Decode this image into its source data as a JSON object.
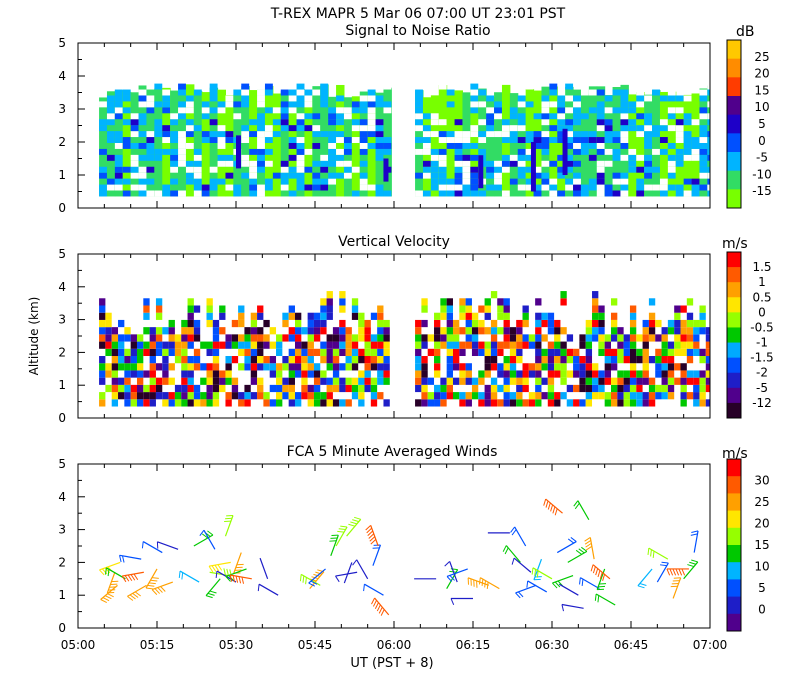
{
  "header": {
    "title": "T-REX   MAPR   5 Mar 06   07:00 UT   23:01   PST"
  },
  "chart_data": [
    {
      "type": "heatmap",
      "title": "Signal to Noise Ratio",
      "xlabel": "",
      "ylabel": "",
      "x_range_minutes_from_0500": [
        0,
        120
      ],
      "ylim": [
        0,
        5
      ],
      "y_ticks": [
        "0",
        "1",
        "2",
        "3",
        "4",
        "5"
      ],
      "data_gap_minutes": [
        59,
        64
      ],
      "colorbar": {
        "unit": "dB",
        "labels": [
          "25",
          "20",
          "15",
          "10",
          "5",
          "0",
          "-5",
          "-10",
          "-15"
        ],
        "colors": [
          "#ffc800",
          "#ff8c00",
          "#ff3c00",
          "#50008c",
          "#1e00c8",
          "#0050ff",
          "#00b4ff",
          "#32dc64",
          "#78ff00"
        ]
      }
    },
    {
      "type": "heatmap",
      "title": "Vertical Velocity",
      "xlabel": "",
      "ylabel": "Altitude (km)",
      "x_range_minutes_from_0500": [
        0,
        120
      ],
      "ylim": [
        0,
        5
      ],
      "y_ticks": [
        "0",
        "1",
        "2",
        "3",
        "4",
        "5"
      ],
      "data_gap_minutes": [
        59,
        64
      ],
      "colorbar": {
        "unit": "m/s",
        "labels": [
          "1.5",
          "1",
          "0.5",
          "0",
          "-0.5",
          "-1",
          "-1.5",
          "-2",
          "-5",
          "-12"
        ],
        "colors": [
          "#ff0000",
          "#ff5a00",
          "#ffa000",
          "#ffe600",
          "#96ff00",
          "#00c800",
          "#00aaff",
          "#0050ff",
          "#1e1ec8",
          "#50008c",
          "#280028"
        ]
      }
    },
    {
      "type": "scatter",
      "title": "FCA 5 Minute Averaged Winds",
      "xlabel": "UT  (PST + 8)",
      "ylabel": "",
      "x_range_minutes_from_0500": [
        0,
        120
      ],
      "ylim": [
        0,
        5
      ],
      "y_ticks": [
        "0",
        "1",
        "2",
        "3",
        "4",
        "5"
      ],
      "x_ticks": [
        "05:00",
        "05:15",
        "05:30",
        "05:45",
        "06:00",
        "06:15",
        "06:30",
        "06:45",
        "07:00"
      ],
      "colorbar": {
        "unit": "m/s",
        "labels": [
          "30",
          "25",
          "20",
          "15",
          "10",
          "5",
          "0"
        ],
        "colors": [
          "#ff0000",
          "#ff5a00",
          "#ffa000",
          "#ffe600",
          "#96ff00",
          "#00c800",
          "#00b4ff",
          "#0050ff",
          "#1e1ec8",
          "#50008c"
        ]
      },
      "barbs": [
        {
          "t": 7,
          "alt": 1.7,
          "dir": 200,
          "spd": 24
        },
        {
          "t": 7.5,
          "alt": 1.3,
          "dir": 230,
          "spd": 22
        },
        {
          "t": 8,
          "alt": 2.0,
          "dir": 250,
          "spd": 20
        },
        {
          "t": 9,
          "alt": 1.5,
          "dir": 300,
          "spd": 12
        },
        {
          "t": 12,
          "alt": 2.1,
          "dir": 280,
          "spd": 8
        },
        {
          "t": 12.5,
          "alt": 1.7,
          "dir": 260,
          "spd": 26
        },
        {
          "t": 13,
          "alt": 1.3,
          "dir": 240,
          "spd": 22
        },
        {
          "t": 15,
          "alt": 1.8,
          "dir": 210,
          "spd": 24
        },
        {
          "t": 16,
          "alt": 2.3,
          "dir": 300,
          "spd": 6
        },
        {
          "t": 18,
          "alt": 1.4,
          "dir": 250,
          "spd": 22
        },
        {
          "t": 19,
          "alt": 2.4,
          "dir": 290,
          "spd": 4
        },
        {
          "t": 22,
          "alt": 2.5,
          "dir": 60,
          "spd": 14
        },
        {
          "t": 23,
          "alt": 1.4,
          "dir": 300,
          "spd": 10
        },
        {
          "t": 25,
          "alt": 1.7,
          "dir": 100,
          "spd": 16
        },
        {
          "t": 26,
          "alt": 2.4,
          "dir": 330,
          "spd": 6
        },
        {
          "t": 27,
          "alt": 1.5,
          "dir": 220,
          "spd": 14
        },
        {
          "t": 28,
          "alt": 2.8,
          "dir": 20,
          "spd": 16
        },
        {
          "t": 29,
          "alt": 2.0,
          "dir": 260,
          "spd": 20
        },
        {
          "t": 30,
          "alt": 1.4,
          "dir": 300,
          "spd": 4
        },
        {
          "t": 31,
          "alt": 2.3,
          "dir": 200,
          "spd": 22
        },
        {
          "t": 32,
          "alt": 1.8,
          "dir": 250,
          "spd": 12
        },
        {
          "t": 33,
          "alt": 1.5,
          "dir": 280,
          "spd": 26
        },
        {
          "t": 36,
          "alt": 1.5,
          "dir": 340,
          "spd": 2
        },
        {
          "t": 38,
          "alt": 1.0,
          "dir": 300,
          "spd": 4
        },
        {
          "t": 44,
          "alt": 1.2,
          "dir": 40,
          "spd": 24
        },
        {
          "t": 46,
          "alt": 1.3,
          "dir": 300,
          "spd": 16
        },
        {
          "t": 47,
          "alt": 1.8,
          "dir": 230,
          "spd": 8
        },
        {
          "t": 48,
          "alt": 2.2,
          "dir": 20,
          "spd": 14
        },
        {
          "t": 49,
          "alt": 2.5,
          "dir": 30,
          "spd": 16
        },
        {
          "t": 51,
          "alt": 2.8,
          "dir": 40,
          "spd": 18
        },
        {
          "t": 52,
          "alt": 2.0,
          "dir": 200,
          "spd": 2
        },
        {
          "t": 53,
          "alt": 1.7,
          "dir": 260,
          "spd": 4
        },
        {
          "t": 55,
          "alt": 1.5,
          "dir": 330,
          "spd": 4
        },
        {
          "t": 56,
          "alt": 1.9,
          "dir": 20,
          "spd": 8
        },
        {
          "t": 57,
          "alt": 2.5,
          "dir": 340,
          "spd": 28
        },
        {
          "t": 58,
          "alt": 1.0,
          "dir": 300,
          "spd": 6
        },
        {
          "t": 59,
          "alt": 0.4,
          "dir": 320,
          "spd": 28
        },
        {
          "t": 68,
          "alt": 1.5,
          "dir": 270,
          "spd": 2
        },
        {
          "t": 70,
          "alt": 1.2,
          "dir": 30,
          "spd": 12
        },
        {
          "t": 72,
          "alt": 1.4,
          "dir": 340,
          "spd": 4
        },
        {
          "t": 74,
          "alt": 1.8,
          "dir": 250,
          "spd": 8
        },
        {
          "t": 75,
          "alt": 0.9,
          "dir": 270,
          "spd": 4
        },
        {
          "t": 78,
          "alt": 1.3,
          "dir": 290,
          "spd": 22
        },
        {
          "t": 80,
          "alt": 1.2,
          "dir": 300,
          "spd": 22
        },
        {
          "t": 82,
          "alt": 2.9,
          "dir": 270,
          "spd": 2
        },
        {
          "t": 84,
          "alt": 2.0,
          "dir": 320,
          "spd": 12
        },
        {
          "t": 85,
          "alt": 2.5,
          "dir": 330,
          "spd": 8
        },
        {
          "t": 86,
          "alt": 1.7,
          "dir": 310,
          "spd": 4
        },
        {
          "t": 87,
          "alt": 1.3,
          "dir": 250,
          "spd": 8
        },
        {
          "t": 88,
          "alt": 2.1,
          "dir": 200,
          "spd": 10
        },
        {
          "t": 89,
          "alt": 1.1,
          "dir": 300,
          "spd": 6
        },
        {
          "t": 90,
          "alt": 1.5,
          "dir": 300,
          "spd": 16
        },
        {
          "t": 91,
          "alt": 2.3,
          "dir": 60,
          "spd": 8
        },
        {
          "t": 92,
          "alt": 3.5,
          "dir": 310,
          "spd": 28
        },
        {
          "t": 93,
          "alt": 2.0,
          "dir": 60,
          "spd": 14
        },
        {
          "t": 94,
          "alt": 1.6,
          "dir": 250,
          "spd": 14
        },
        {
          "t": 95,
          "alt": 1.0,
          "dir": 300,
          "spd": 2
        },
        {
          "t": 96,
          "alt": 0.6,
          "dir": 280,
          "spd": 4
        },
        {
          "t": 97,
          "alt": 3.3,
          "dir": 330,
          "spd": 12
        },
        {
          "t": 98,
          "alt": 2.1,
          "dir": 350,
          "spd": 22
        },
        {
          "t": 99,
          "alt": 1.2,
          "dir": 300,
          "spd": 8
        },
        {
          "t": 100,
          "alt": 1.8,
          "dir": 200,
          "spd": 14
        },
        {
          "t": 101,
          "alt": 1.5,
          "dir": 310,
          "spd": 28
        },
        {
          "t": 102,
          "alt": 0.7,
          "dir": 300,
          "spd": 12
        },
        {
          "t": 109,
          "alt": 1.8,
          "dir": 220,
          "spd": 10
        },
        {
          "t": 110,
          "alt": 1.4,
          "dir": 30,
          "spd": 8
        },
        {
          "t": 112,
          "alt": 2.1,
          "dir": 300,
          "spd": 16
        },
        {
          "t": 113,
          "alt": 0.9,
          "dir": 20,
          "spd": 22
        },
        {
          "t": 115,
          "alt": 1.5,
          "dir": 40,
          "spd": 14
        },
        {
          "t": 116,
          "alt": 1.8,
          "dir": 270,
          "spd": 28
        },
        {
          "t": 117,
          "alt": 2.3,
          "dir": 10,
          "spd": 8
        }
      ]
    }
  ]
}
